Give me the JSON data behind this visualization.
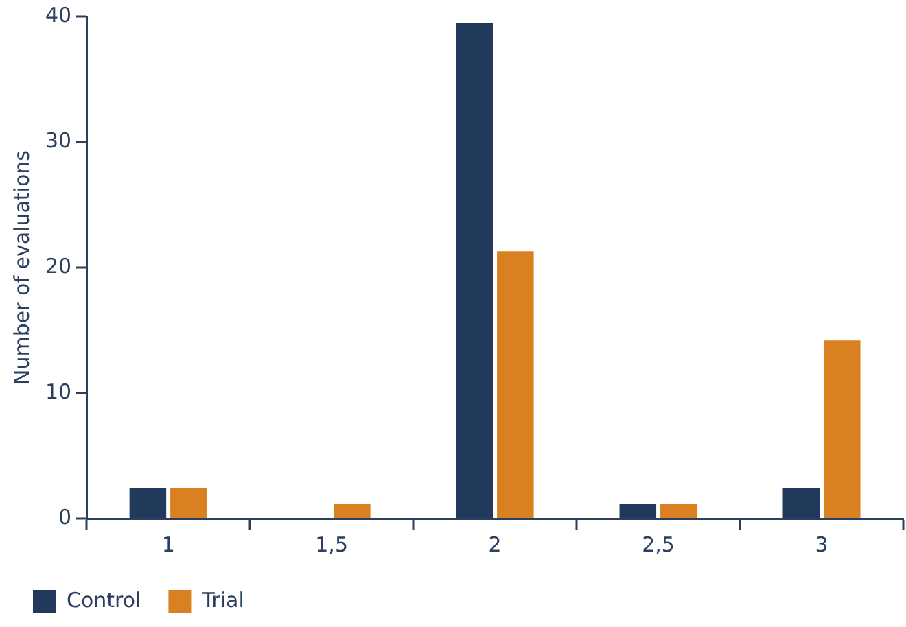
{
  "chart_data": {
    "type": "bar",
    "ylabel": "Number of evaluations",
    "categories": [
      "1",
      "1,5",
      "2",
      "2,5",
      "3"
    ],
    "series": [
      {
        "name": "Control",
        "color": "#213a5c",
        "values": [
          2.4,
          0,
          39.5,
          1.2,
          2.4
        ]
      },
      {
        "name": "Trial",
        "color": "#d98121",
        "values": [
          2.4,
          1.2,
          21.3,
          1.2,
          14.2
        ]
      }
    ],
    "ylim": [
      0,
      40
    ],
    "yticks": [
      0,
      10,
      20,
      30,
      40
    ],
    "grid": false,
    "legend": "bottom left"
  }
}
